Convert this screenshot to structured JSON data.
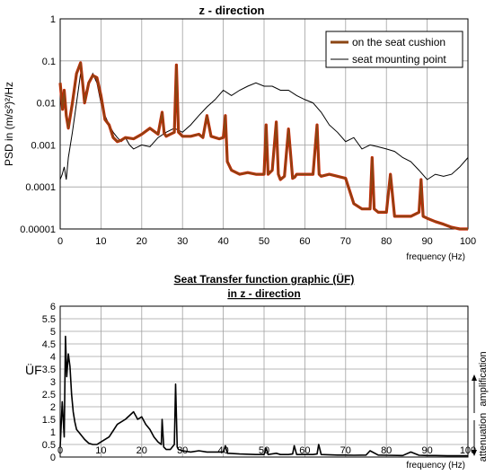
{
  "chart_data": [
    {
      "type": "line",
      "title": "z - direction",
      "xlabel": "frequency  (Hz)",
      "ylabel": "PSD in (m/s²)²/Hz",
      "yscale": "log",
      "xlim": [
        0,
        100
      ],
      "ylim": [
        1e-05,
        1
      ],
      "grid": true,
      "legend_position": "top-right",
      "x_ticks": [
        "0",
        "10",
        "20",
        "30",
        "40",
        "50",
        "60",
        "70",
        "80",
        "90",
        "100"
      ],
      "y_ticks": [
        "0.00001",
        "0.0001",
        "0.001",
        "0.01",
        "0.1",
        "1"
      ],
      "series": [
        {
          "name": "on the seat cushion",
          "color": "#8b4513",
          "highlight_color": "#cc2200",
          "x": [
            0,
            0.6,
            1,
            1.5,
            2,
            3,
            4,
            5,
            5.5,
            6,
            7,
            8,
            9,
            10,
            11,
            12,
            13,
            14,
            15,
            16,
            18,
            20,
            22,
            24,
            25,
            25.5,
            26,
            27,
            28,
            28.5,
            29,
            30,
            32,
            34,
            35,
            36,
            37,
            38,
            39,
            40,
            40.5,
            41,
            42,
            44,
            46,
            48,
            50,
            50.5,
            51,
            52,
            53,
            53.5,
            54,
            55,
            56,
            57,
            57.5,
            58,
            60,
            62,
            63,
            63.5,
            64,
            66,
            68,
            70,
            72,
            74,
            76,
            76.5,
            77,
            78,
            80,
            81,
            82,
            84,
            86,
            88,
            88.5,
            89,
            90,
            92,
            94,
            96,
            98,
            100
          ],
          "y": [
            0.03,
            0.007,
            0.02,
            0.005,
            0.0025,
            0.01,
            0.05,
            0.09,
            0.03,
            0.01,
            0.03,
            0.045,
            0.04,
            0.015,
            0.004,
            0.003,
            0.0015,
            0.0012,
            0.0013,
            0.0015,
            0.0014,
            0.0018,
            0.0025,
            0.0018,
            0.006,
            0.0019,
            0.0016,
            0.0018,
            0.002,
            0.08,
            0.002,
            0.0016,
            0.0016,
            0.0018,
            0.0015,
            0.005,
            0.0016,
            0.0015,
            0.0014,
            0.0015,
            0.005,
            0.0004,
            0.00025,
            0.0002,
            0.00022,
            0.0002,
            0.0002,
            0.003,
            0.0002,
            0.00025,
            0.0035,
            0.0002,
            0.00015,
            0.00018,
            0.0024,
            0.00016,
            0.00017,
            0.0002,
            0.0002,
            0.0002,
            0.003,
            0.0002,
            0.00018,
            0.0002,
            0.00018,
            0.00016,
            4e-05,
            3e-05,
            3e-05,
            0.0005,
            3e-05,
            2.5e-05,
            2.5e-05,
            0.0002,
            2e-05,
            2e-05,
            2e-05,
            2.5e-05,
            0.00015,
            2e-05,
            1.8e-05,
            1.5e-05,
            1.3e-05,
            1.1e-05,
            1e-05,
            1e-05
          ]
        },
        {
          "name": "seat mounting point",
          "color": "#000000",
          "x": [
            0,
            0.5,
            1,
            1.5,
            2,
            3,
            4,
            5,
            6,
            7,
            8,
            9,
            10,
            11,
            12,
            13,
            14,
            15,
            16,
            17,
            18,
            20,
            22,
            24,
            26,
            28,
            30,
            32,
            34,
            36,
            38,
            40,
            42,
            44,
            46,
            48,
            50,
            52,
            54,
            56,
            58,
            60,
            62,
            64,
            66,
            68,
            70,
            72,
            74,
            76,
            78,
            80,
            82,
            84,
            86,
            88,
            90,
            92,
            94,
            96,
            98,
            100
          ],
          "y": [
            0.00015,
            0.0002,
            0.0003,
            0.00015,
            0.0005,
            0.002,
            0.01,
            0.05,
            0.015,
            0.03,
            0.05,
            0.03,
            0.01,
            0.005,
            0.003,
            0.002,
            0.0015,
            0.0012,
            0.0015,
            0.001,
            0.0008,
            0.001,
            0.0009,
            0.0015,
            0.002,
            0.0025,
            0.002,
            0.003,
            0.005,
            0.008,
            0.012,
            0.02,
            0.015,
            0.02,
            0.025,
            0.03,
            0.025,
            0.025,
            0.02,
            0.02,
            0.015,
            0.012,
            0.01,
            0.006,
            0.003,
            0.002,
            0.0012,
            0.0015,
            0.0008,
            0.001,
            0.0009,
            0.0008,
            0.0007,
            0.0005,
            0.0004,
            0.00025,
            0.00015,
            0.0002,
            0.00018,
            0.0002,
            0.0003,
            0.0005
          ]
        }
      ]
    },
    {
      "type": "line",
      "title": "Seat Transfer function graphic (ÜF)",
      "subtitle": "in  z - direction",
      "xlabel": "frequency  (Hz)",
      "ylabel": "ÜF",
      "xlim": [
        0,
        100
      ],
      "ylim": [
        0,
        6
      ],
      "grid": true,
      "x_ticks": [
        "0",
        "10",
        "20",
        "30",
        "40",
        "50",
        "60",
        "70",
        "80",
        "90",
        "100"
      ],
      "y_ticks": [
        "0",
        "0.5",
        "1",
        "1.5",
        "2",
        "2.5",
        "3",
        "3.5",
        "4",
        "4.5",
        "5",
        "5.5",
        "6"
      ],
      "annotations": [
        "attenuation",
        "amplification"
      ],
      "series": [
        {
          "color": "#000000",
          "x": [
            0,
            0.5,
            1,
            1.3,
            1.6,
            2,
            2.4,
            2.8,
            3.2,
            3.6,
            4,
            5,
            6,
            7,
            8,
            9,
            10,
            12,
            14,
            16,
            18,
            19,
            20,
            21,
            22,
            23,
            24,
            24.8,
            25,
            25.4,
            26,
            27,
            28,
            28.3,
            28.7,
            29,
            30,
            32,
            34,
            36,
            38,
            40,
            40.5,
            41,
            44,
            48,
            50,
            50.5,
            51,
            53,
            54,
            56,
            57,
            57.4,
            58,
            60,
            62,
            63,
            63.4,
            64,
            68,
            70,
            72,
            75,
            76,
            78,
            80,
            84,
            86,
            88,
            90,
            92,
            95,
            98,
            100
          ],
          "y": [
            0.4,
            2.2,
            0.8,
            4.8,
            3.2,
            4.1,
            3.6,
            2.5,
            1.8,
            1.4,
            1.1,
            0.9,
            0.7,
            0.55,
            0.5,
            0.5,
            0.6,
            0.8,
            1.3,
            1.5,
            1.8,
            1.5,
            1.6,
            1.3,
            1.1,
            0.8,
            0.6,
            0.5,
            1.5,
            0.4,
            0.3,
            0.3,
            0.5,
            2.9,
            0.4,
            0.3,
            0.25,
            0.2,
            0.25,
            0.2,
            0.2,
            0.2,
            0.45,
            0.15,
            0.12,
            0.1,
            0.1,
            0.35,
            0.1,
            0.15,
            0.1,
            0.1,
            0.12,
            0.45,
            0.1,
            0.1,
            0.1,
            0.12,
            0.5,
            0.1,
            0.08,
            0.08,
            0.07,
            0.08,
            0.25,
            0.08,
            0.07,
            0.06,
            0.2,
            0.07,
            0.06,
            0.06,
            0.05,
            0.05,
            0.05
          ]
        }
      ]
    }
  ]
}
